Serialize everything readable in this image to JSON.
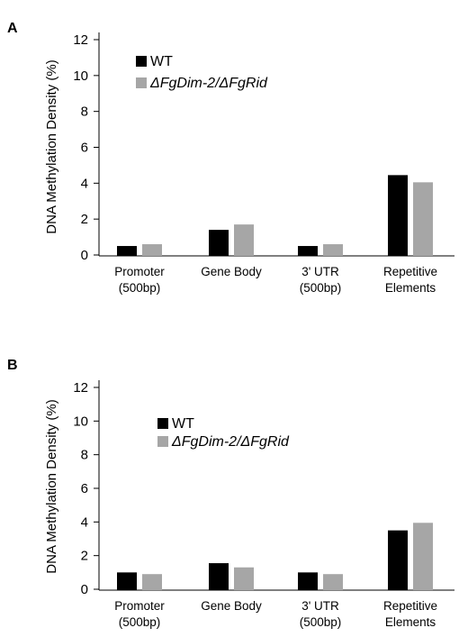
{
  "chart_data": [
    {
      "panel_label": "A",
      "type": "bar",
      "categories": [
        [
          "Promoter",
          "(500bp)"
        ],
        [
          "Gene Body"
        ],
        [
          "3' UTR",
          "(500bp)"
        ],
        [
          "Repetitive",
          "Elements"
        ]
      ],
      "series": [
        {
          "name": "WT",
          "color": "#000000",
          "values": [
            0.5,
            1.4,
            0.5,
            4.45
          ]
        },
        {
          "name": "ΔFgDim-2/ΔFgRid",
          "color": "#a6a6a6",
          "values": [
            0.6,
            1.7,
            0.6,
            4.05
          ]
        }
      ],
      "ylabel": "DNA Methylation Density (%)",
      "xlabel": "",
      "ylim": [
        0,
        12
      ],
      "yticks": [
        0,
        2,
        4,
        6,
        8,
        10,
        12
      ],
      "legend_position": "top-left",
      "grid": false
    },
    {
      "panel_label": "B",
      "type": "bar",
      "categories": [
        [
          "Promoter",
          "(500bp)"
        ],
        [
          "Gene Body"
        ],
        [
          "3' UTR",
          "(500bp)"
        ],
        [
          "Repetitive",
          "Elements"
        ]
      ],
      "series": [
        {
          "name": "WT",
          "color": "#000000",
          "values": [
            1.0,
            1.55,
            1.0,
            3.5
          ]
        },
        {
          "name": "ΔFgDim-2/ΔFgRid",
          "color": "#a6a6a6",
          "values": [
            0.9,
            1.3,
            0.9,
            3.95
          ]
        }
      ],
      "ylabel": "DNA Methylation Density (%)",
      "xlabel": "",
      "ylim": [
        0,
        12
      ],
      "yticks": [
        0,
        2,
        4,
        6,
        8,
        10,
        12
      ],
      "legend_position": "top-left",
      "grid": false
    }
  ]
}
